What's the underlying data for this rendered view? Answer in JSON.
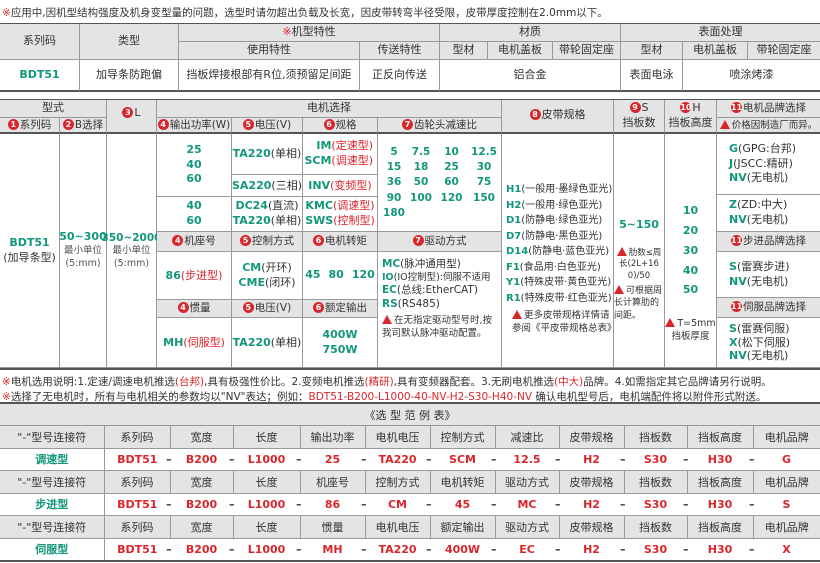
{
  "note_top": {
    "mark": "※",
    "text": "应用中,因机型结构强度及机身变型量的问题，选型时请勿超出负载及长宽，因皮带转弯半径受限，皮带厚度控制在2.0mm以下。"
  },
  "table1": {
    "series_code": "系列码",
    "type": "类型",
    "features_mark": "※",
    "features": "机型特性",
    "material": "材质",
    "surface": "表面处理",
    "usage": "使用特性",
    "transport": "传送特性",
    "profile": "型材",
    "motor_cover": "电机盖板",
    "pulley_seat": "带轮固定座",
    "row": {
      "series": "BDT51",
      "type": "加导条防跑偏",
      "usage": "挡板焊接根部有R位,须预留足间距",
      "transport": "正反向传送",
      "material": "铝合金",
      "surface_profile": "表面电泳",
      "surface_other": "喷涂烤漆"
    }
  },
  "table2": {
    "model": "型式",
    "motor_select": "电机选择",
    "h": {
      "series": {
        "num": "1",
        "label": "系列码"
      },
      "b": {
        "num": "2",
        "label": "B选择"
      },
      "l": {
        "num": "3",
        "label": "L"
      },
      "power": {
        "num": "4",
        "label": "输出功率(W)"
      },
      "voltage": {
        "num": "5",
        "label": "电压(V)"
      },
      "spec": {
        "num": "6",
        "label": "规格"
      },
      "ratio": {
        "num": "7",
        "label": "齿轮头减速比"
      },
      "belt": {
        "num": "8",
        "label": "皮带规格"
      },
      "s": {
        "num": "9",
        "label": "S",
        "sub": "挡板数"
      },
      "hh": {
        "num": "10",
        "label": "H",
        "sub": "挡板高度"
      },
      "brand": {
        "num": "11",
        "label": "电机品牌选择",
        "note": "价格因制造厂而异。"
      }
    },
    "series": {
      "code": "BDT51",
      "desc": "(加导条型)"
    },
    "b": {
      "range": "50~300",
      "unit": "最小单位",
      "unit2": "(5:mm)"
    },
    "l": {
      "range": "350~2000",
      "unit": "最小单位",
      "unit2": "(5:mm)"
    },
    "power1": [
      "25",
      "40",
      "60"
    ],
    "power2": [
      "40",
      "60"
    ],
    "v_ta220": {
      "code": "TA220",
      "desc": "(单相)"
    },
    "v_sa220": {
      "code": "SA220",
      "desc": "(三相)"
    },
    "v_dc24": {
      "code": "DC24",
      "desc": "(直流)"
    },
    "v_ta220b": {
      "code": "TA220",
      "desc": "(单相)"
    },
    "spec_im": {
      "code": "IM",
      "desc": "(定速型)"
    },
    "spec_scm": {
      "code": "SCM",
      "desc": "(调速型)"
    },
    "spec_inv": {
      "code": "INV",
      "desc": "(变频型)"
    },
    "spec_kmc": {
      "code": "KMC",
      "desc": "(调速型)"
    },
    "spec_sws": {
      "code": "SWS",
      "desc": "(控制型)"
    },
    "ratios": [
      "5",
      "7.5",
      "10",
      "12.5",
      "15",
      "18",
      "25",
      "30",
      "36",
      "50",
      "60",
      "75",
      "90",
      "100",
      "120",
      "150",
      "180"
    ],
    "stepper_h": {
      "frame": {
        "num": "4",
        "label": "机座号"
      },
      "control": {
        "num": "5",
        "label": "控制方式"
      },
      "torque": {
        "num": "6",
        "label": "电机转矩"
      },
      "drive": {
        "num": "7",
        "label": "驱动方式"
      }
    },
    "stepper": {
      "frame_code": "86",
      "frame_desc": "(步进型)",
      "cm": {
        "code": "CM",
        "desc": "(开环)"
      },
      "cme": {
        "code": "CME",
        "desc": "(闭环)"
      },
      "torque": [
        "45",
        "80",
        "120"
      ]
    },
    "servo_h": {
      "inertia": {
        "num": "4",
        "label": "惯量"
      },
      "voltage": {
        "num": "5",
        "label": "电压(V)"
      },
      "output": {
        "num": "6",
        "label": "额定输出"
      }
    },
    "servo": {
      "inertia_code": "MH",
      "inertia_desc": "(伺服型)",
      "v": {
        "code": "TA220",
        "desc": "(单相)"
      },
      "output": [
        "400W",
        "750W"
      ]
    },
    "drive": [
      {
        "code": "MC",
        "desc": "(脉冲通用型)"
      },
      {
        "code": "IO",
        "desc": "(IO控制型):伺服不适用"
      },
      {
        "code": "EC",
        "desc": "(总线:EtherCAT)"
      },
      {
        "code": "RS",
        "desc": "(RS485)"
      }
    ],
    "drive_note": "在无指定驱动型号时,按我司默认脉冲驱动配置。",
    "belts": [
      {
        "code": "H1",
        "desc": "(一般用·墨绿色亚光)"
      },
      {
        "code": "H2",
        "desc": "(一般用·绿色亚光)"
      },
      {
        "code": "D1",
        "desc": "(防静电·绿色亚光)"
      },
      {
        "code": "D7",
        "desc": "(防静电·黑色亚光)"
      },
      {
        "code": "D14",
        "desc": "(防静电·蓝色亚光)"
      },
      {
        "code": "F1",
        "desc": "(食品用·白色亚光)"
      },
      {
        "code": "Y1",
        "desc": "(特殊皮带·黄色亚光)"
      },
      {
        "code": "R1",
        "desc": "(特殊皮带·红色亚光)"
      }
    ],
    "belt_note": "更多皮带规格详情请参阅《平皮带规格总表》",
    "s_range": "5~150",
    "s_note1": "肋数≤周长(2L+160)/50",
    "s_note2": "可根据周长计算肋的间距。",
    "h_values": [
      "10",
      "20",
      "30",
      "40",
      "50"
    ],
    "h_note": "T=5mm",
    "h_note2": "挡板厚度",
    "brand_gear1": [
      {
        "code": "G",
        "desc": "(GPG:台邦)"
      },
      {
        "code": "J",
        "desc": "(JSCC:精研)"
      },
      {
        "code": "NV",
        "desc": "(无电机)"
      }
    ],
    "brand_gear2": [
      {
        "code": "Z",
        "desc": "(ZD:中大)"
      },
      {
        "code": "NV",
        "desc": "(无电机)"
      }
    ],
    "stepper_brand_h": {
      "num": "11",
      "label": "步进品牌选择"
    },
    "stepper_brand": [
      {
        "code": "S",
        "desc": "(雷赛步进)"
      },
      {
        "code": "NV",
        "desc": "(无电机)"
      }
    ],
    "servo_brand_h": {
      "num": "11",
      "label": "伺服品牌选择"
    },
    "servo_brand": [
      {
        "code": "S",
        "desc": "(雷赛伺服)"
      },
      {
        "code": "X",
        "desc": "(松下伺服)"
      },
      {
        "code": "NV",
        "desc": "(无电机)"
      }
    ]
  },
  "notes": {
    "n1": {
      "mark": "※",
      "a": "电机选用说明:1.定速/调速电机推选",
      "b": "(台邦)",
      "c": ",具有极强性价比。2.变频电机推选",
      "d": "(精研)",
      "e": ",具有变频器配套。3.无刷电机推选",
      "f": "(中大)",
      "g": "品牌。4.如需指定其它品牌请另行说明。"
    },
    "n2": {
      "mark": "※",
      "a": "选择了无电机时，所有与电机相关的参数均以\"NV\"表达；例如：",
      "b": "BDT51-B200-L1000-40-NV-H2-S30-H40-NV",
      "c": "  确认电机型号后，电机端配件将以附件形式附送。"
    }
  },
  "table3": {
    "title": "《选 型 范 例 表》",
    "separator": "–",
    "groups": [
      {
        "name": "调速型",
        "headers": [
          "\"-\"型号连接符",
          "系列码",
          "宽度",
          "长度",
          "输出功率",
          "电机电压",
          "控制方式",
          "减速比",
          "皮带规格",
          "挡板数",
          "挡板高度",
          "电机品牌"
        ],
        "values": [
          "BDT51",
          "B200",
          "L1000",
          "25",
          "TA220",
          "SCM",
          "12.5",
          "H2",
          "S30",
          "H30",
          "G"
        ]
      },
      {
        "name": "步进型",
        "headers": [
          "\"-\"型号连接符",
          "系列码",
          "宽度",
          "长度",
          "机座号",
          "控制方式",
          "电机转矩",
          "驱动方式",
          "皮带规格",
          "挡板数",
          "挡板高度",
          "电机品牌"
        ],
        "values": [
          "BDT51",
          "B200",
          "L1000",
          "86",
          "CM",
          "45",
          "MC",
          "H2",
          "S30",
          "H30",
          "S"
        ]
      },
      {
        "name": "伺服型",
        "headers": [
          "\"-\"型号连接符",
          "系列码",
          "宽度",
          "长度",
          "惯量",
          "电机电压",
          "额定输出",
          "驱动方式",
          "皮带规格",
          "挡板数",
          "挡板高度",
          "电机品牌"
        ],
        "values": [
          "BDT51",
          "B200",
          "L1000",
          "MH",
          "TA220",
          "400W",
          "EC",
          "H2",
          "S30",
          "H30",
          "X"
        ]
      }
    ]
  },
  "colors": {
    "accent_green": "#13977a",
    "accent_red": "#d9262b",
    "header_bg": "#e4e4e4"
  }
}
